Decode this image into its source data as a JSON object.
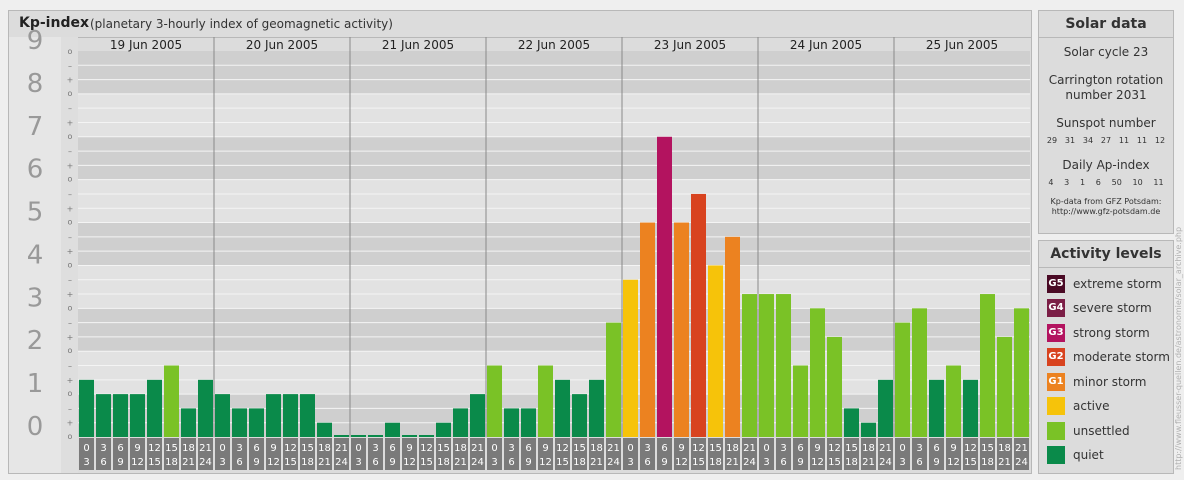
{
  "header": {
    "title": "Kp-index",
    "subtitle": "(planetary 3-hourly index of geomagnetic activity)"
  },
  "chart_data": {
    "type": "bar",
    "ylim": [
      0,
      9
    ],
    "y_ticks": [
      "0",
      "1",
      "2",
      "3",
      "4",
      "5",
      "6",
      "7",
      "8",
      "9"
    ],
    "minor_tick_symbols": [
      "o",
      "+",
      "–"
    ],
    "days": [
      "19 Jun 2005",
      "20 Jun 2005",
      "21 Jun 2005",
      "22 Jun 2005",
      "23 Jun 2005",
      "24 Jun 2005",
      "25 Jun 2005"
    ],
    "interval_start_hours": [
      "0",
      "3",
      "6",
      "9",
      "12",
      "15",
      "18",
      "21"
    ],
    "interval_end_hours": [
      "3",
      "6",
      "9",
      "12",
      "15",
      "18",
      "21",
      "24"
    ],
    "values": [
      1.333,
      1,
      1,
      1,
      1.333,
      1.667,
      0.667,
      1.333,
      1,
      0.667,
      0.667,
      1,
      1,
      1,
      0.333,
      0,
      0,
      0,
      0.333,
      0,
      0,
      0.333,
      0.667,
      1,
      1.667,
      0.667,
      0.667,
      1.667,
      1.333,
      1,
      1.333,
      2.667,
      3.667,
      5,
      7,
      5,
      5.667,
      4,
      4.667,
      3.333,
      3.333,
      3.333,
      1.667,
      3,
      2.333,
      0.667,
      0.333,
      1.333,
      2.667,
      3,
      1.333,
      1.667,
      1.333,
      3.333,
      2.333,
      3
    ],
    "grid": true
  },
  "colors": {
    "quiet": "#0a8a4a",
    "unsettled": "#7ac226",
    "active": "#f6c30a",
    "G1": "#ec8220",
    "G2": "#d8431f",
    "G3": "#b3135f",
    "G4": "#7b1e46",
    "G5": "#4a0a25"
  },
  "solar_data": {
    "heading": "Solar data",
    "cycle": "Solar cycle 23",
    "carrington_label": "Carrington rotation",
    "carrington_number": "number 2031",
    "sunspot_label": "Sunspot number",
    "sunspot_values": [
      "29",
      "31",
      "34",
      "27",
      "11",
      "11",
      "12"
    ],
    "ap_label": "Daily Ap-index",
    "ap_values": [
      "4",
      "3",
      "1",
      "6",
      "50",
      "10",
      "11"
    ],
    "credit_line1": "Kp-data from GFZ Potsdam:",
    "credit_line2": "http://www.gfz-potsdam.de"
  },
  "activity_levels": {
    "heading": "Activity levels",
    "items": [
      {
        "code": "G5",
        "label": "extreme storm",
        "color": "#4a0a25"
      },
      {
        "code": "G4",
        "label": "severe storm",
        "color": "#7b1e46"
      },
      {
        "code": "G3",
        "label": "strong storm",
        "color": "#b3135f"
      },
      {
        "code": "G2",
        "label": "moderate storm",
        "color": "#d8431f"
      },
      {
        "code": "G1",
        "label": "minor storm",
        "color": "#ec8220"
      },
      {
        "code": "",
        "label": "active",
        "color": "#f6c30a"
      },
      {
        "code": "",
        "label": "unsettled",
        "color": "#7ac226"
      },
      {
        "code": "",
        "label": "quiet",
        "color": "#0a8a4a"
      }
    ]
  },
  "watermark": "http://www.fleusser-quellen.de/astronomie/solar_archive.php"
}
